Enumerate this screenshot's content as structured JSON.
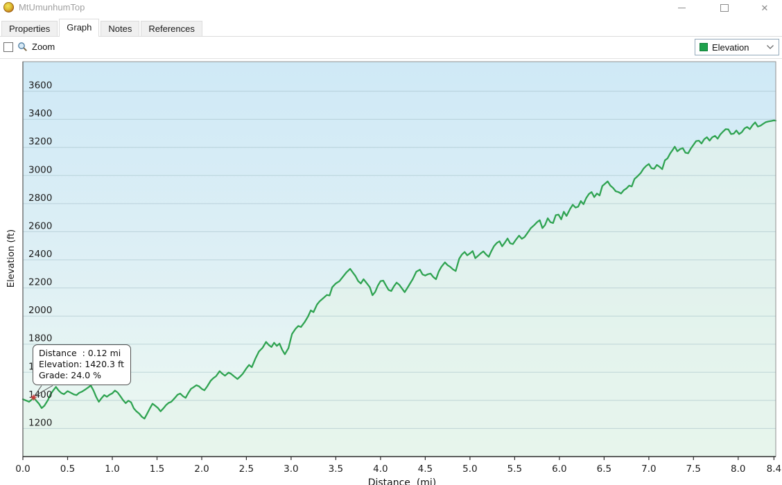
{
  "window": {
    "title": "MtUmunhumTop"
  },
  "tabs": [
    {
      "label": "Properties",
      "active": false
    },
    {
      "label": "Graph",
      "active": true
    },
    {
      "label": "Notes",
      "active": false
    },
    {
      "label": "References",
      "active": false
    }
  ],
  "toolbar": {
    "zoom_label": "Zoom",
    "zoom_checked": false,
    "series_selector": {
      "value": "Elevation",
      "swatch_color": "#1fa24c"
    }
  },
  "tooltip": {
    "lines": [
      "Distance  : 0.12 mi",
      "Elevation: 1420.3 ft",
      "Grade: 24.0 %"
    ]
  },
  "chart_data": {
    "type": "area",
    "title": "",
    "xlabel": "Distance  (mi)",
    "ylabel": "Elevation (ft)",
    "xlim": [
      0,
      8.42
    ],
    "ylim": [
      1000,
      3810
    ],
    "x_ticks": [
      0.0,
      0.5,
      1.0,
      1.5,
      2.0,
      2.5,
      3.0,
      3.5,
      4.0,
      4.5,
      5.0,
      5.5,
      6.0,
      6.5,
      7.0,
      7.5,
      8.0,
      8.4
    ],
    "y_ticks": [
      1200,
      1400,
      1600,
      1800,
      2000,
      2200,
      2400,
      2600,
      2800,
      3000,
      3200,
      3400,
      3600
    ],
    "grid": true,
    "legend_position": "toolbar-dropdown",
    "line_color": "#2fa351",
    "area_color": "#e3f3e9",
    "bg_gradient": [
      "#cfe9f6",
      "#ddeff5",
      "#eef9f1"
    ],
    "grid_color": "#9fb9c2",
    "marker": {
      "x": 0.12,
      "y": 1420.3,
      "color": "#cf3737"
    },
    "series": [
      {
        "name": "Elevation",
        "points": [
          [
            0.0,
            1408
          ],
          [
            0.04,
            1398
          ],
          [
            0.07,
            1390
          ],
          [
            0.1,
            1406
          ],
          [
            0.12,
            1420
          ],
          [
            0.15,
            1398
          ],
          [
            0.18,
            1376
          ],
          [
            0.21,
            1345
          ],
          [
            0.24,
            1362
          ],
          [
            0.28,
            1402
          ],
          [
            0.31,
            1444
          ],
          [
            0.34,
            1472
          ],
          [
            0.37,
            1496
          ],
          [
            0.4,
            1470
          ],
          [
            0.43,
            1452
          ],
          [
            0.46,
            1444
          ],
          [
            0.5,
            1466
          ],
          [
            0.53,
            1456
          ],
          [
            0.57,
            1442
          ],
          [
            0.6,
            1438
          ],
          [
            0.63,
            1454
          ],
          [
            0.66,
            1462
          ],
          [
            0.7,
            1478
          ],
          [
            0.73,
            1492
          ],
          [
            0.76,
            1506
          ],
          [
            0.79,
            1470
          ],
          [
            0.82,
            1424
          ],
          [
            0.85,
            1390
          ],
          [
            0.88,
            1416
          ],
          [
            0.91,
            1438
          ],
          [
            0.94,
            1426
          ],
          [
            0.97,
            1440
          ],
          [
            1.0,
            1450
          ],
          [
            1.03,
            1470
          ],
          [
            1.06,
            1456
          ],
          [
            1.09,
            1430
          ],
          [
            1.12,
            1402
          ],
          [
            1.15,
            1380
          ],
          [
            1.18,
            1398
          ],
          [
            1.21,
            1386
          ],
          [
            1.24,
            1344
          ],
          [
            1.27,
            1322
          ],
          [
            1.3,
            1306
          ],
          [
            1.33,
            1284
          ],
          [
            1.36,
            1270
          ],
          [
            1.39,
            1306
          ],
          [
            1.42,
            1342
          ],
          [
            1.45,
            1376
          ],
          [
            1.48,
            1362
          ],
          [
            1.51,
            1346
          ],
          [
            1.54,
            1322
          ],
          [
            1.57,
            1342
          ],
          [
            1.6,
            1366
          ],
          [
            1.63,
            1382
          ],
          [
            1.66,
            1390
          ],
          [
            1.7,
            1418
          ],
          [
            1.73,
            1440
          ],
          [
            1.76,
            1448
          ],
          [
            1.79,
            1430
          ],
          [
            1.82,
            1418
          ],
          [
            1.85,
            1452
          ],
          [
            1.88,
            1482
          ],
          [
            1.91,
            1494
          ],
          [
            1.94,
            1508
          ],
          [
            1.97,
            1500
          ],
          [
            2.0,
            1482
          ],
          [
            2.03,
            1472
          ],
          [
            2.06,
            1498
          ],
          [
            2.1,
            1540
          ],
          [
            2.13,
            1558
          ],
          [
            2.16,
            1572
          ],
          [
            2.2,
            1608
          ],
          [
            2.23,
            1590
          ],
          [
            2.26,
            1576
          ],
          [
            2.3,
            1598
          ],
          [
            2.33,
            1588
          ],
          [
            2.36,
            1572
          ],
          [
            2.4,
            1552
          ],
          [
            2.43,
            1570
          ],
          [
            2.46,
            1590
          ],
          [
            2.5,
            1628
          ],
          [
            2.53,
            1652
          ],
          [
            2.56,
            1636
          ],
          [
            2.6,
            1696
          ],
          [
            2.64,
            1748
          ],
          [
            2.68,
            1774
          ],
          [
            2.72,
            1816
          ],
          [
            2.75,
            1794
          ],
          [
            2.78,
            1780
          ],
          [
            2.81,
            1810
          ],
          [
            2.84,
            1788
          ],
          [
            2.87,
            1804
          ],
          [
            2.9,
            1760
          ],
          [
            2.93,
            1728
          ],
          [
            2.97,
            1772
          ],
          [
            3.01,
            1872
          ],
          [
            3.05,
            1910
          ],
          [
            3.08,
            1930
          ],
          [
            3.11,
            1922
          ],
          [
            3.15,
            1956
          ],
          [
            3.19,
            1998
          ],
          [
            3.22,
            2040
          ],
          [
            3.25,
            2028
          ],
          [
            3.29,
            2082
          ],
          [
            3.32,
            2106
          ],
          [
            3.36,
            2128
          ],
          [
            3.4,
            2150
          ],
          [
            3.43,
            2146
          ],
          [
            3.46,
            2206
          ],
          [
            3.5,
            2232
          ],
          [
            3.54,
            2248
          ],
          [
            3.58,
            2280
          ],
          [
            3.62,
            2312
          ],
          [
            3.66,
            2336
          ],
          [
            3.69,
            2310
          ],
          [
            3.72,
            2284
          ],
          [
            3.75,
            2248
          ],
          [
            3.78,
            2232
          ],
          [
            3.81,
            2262
          ],
          [
            3.84,
            2238
          ],
          [
            3.88,
            2206
          ],
          [
            3.91,
            2148
          ],
          [
            3.94,
            2172
          ],
          [
            3.97,
            2216
          ],
          [
            4.0,
            2248
          ],
          [
            4.03,
            2252
          ],
          [
            4.06,
            2218
          ],
          [
            4.09,
            2186
          ],
          [
            4.12,
            2178
          ],
          [
            4.15,
            2212
          ],
          [
            4.18,
            2238
          ],
          [
            4.21,
            2222
          ],
          [
            4.24,
            2196
          ],
          [
            4.27,
            2170
          ],
          [
            4.3,
            2200
          ],
          [
            4.33,
            2232
          ],
          [
            4.36,
            2262
          ],
          [
            4.4,
            2316
          ],
          [
            4.44,
            2330
          ],
          [
            4.47,
            2296
          ],
          [
            4.5,
            2288
          ],
          [
            4.53,
            2298
          ],
          [
            4.56,
            2302
          ],
          [
            4.59,
            2278
          ],
          [
            4.62,
            2262
          ],
          [
            4.65,
            2316
          ],
          [
            4.68,
            2350
          ],
          [
            4.72,
            2382
          ],
          [
            4.75,
            2362
          ],
          [
            4.78,
            2350
          ],
          [
            4.81,
            2332
          ],
          [
            4.84,
            2320
          ],
          [
            4.88,
            2408
          ],
          [
            4.91,
            2438
          ],
          [
            4.94,
            2456
          ],
          [
            4.97,
            2432
          ],
          [
            5.0,
            2446
          ],
          [
            5.03,
            2462
          ],
          [
            5.06,
            2412
          ],
          [
            5.09,
            2428
          ],
          [
            5.12,
            2446
          ],
          [
            5.15,
            2460
          ],
          [
            5.18,
            2438
          ],
          [
            5.21,
            2422
          ],
          [
            5.24,
            2462
          ],
          [
            5.27,
            2498
          ],
          [
            5.3,
            2520
          ],
          [
            5.33,
            2532
          ],
          [
            5.36,
            2496
          ],
          [
            5.39,
            2522
          ],
          [
            5.42,
            2552
          ],
          [
            5.45,
            2518
          ],
          [
            5.48,
            2512
          ],
          [
            5.51,
            2540
          ],
          [
            5.55,
            2572
          ],
          [
            5.58,
            2550
          ],
          [
            5.61,
            2562
          ],
          [
            5.64,
            2588
          ],
          [
            5.68,
            2625
          ],
          [
            5.72,
            2648
          ],
          [
            5.75,
            2668
          ],
          [
            5.78,
            2682
          ],
          [
            5.81,
            2626
          ],
          [
            5.84,
            2648
          ],
          [
            5.87,
            2696
          ],
          [
            5.9,
            2668
          ],
          [
            5.93,
            2662
          ],
          [
            5.96,
            2718
          ],
          [
            5.99,
            2722
          ],
          [
            6.02,
            2688
          ],
          [
            6.05,
            2742
          ],
          [
            6.08,
            2712
          ],
          [
            6.12,
            2762
          ],
          [
            6.15,
            2792
          ],
          [
            6.18,
            2772
          ],
          [
            6.21,
            2778
          ],
          [
            6.24,
            2818
          ],
          [
            6.27,
            2796
          ],
          [
            6.3,
            2840
          ],
          [
            6.33,
            2868
          ],
          [
            6.36,
            2882
          ],
          [
            6.39,
            2846
          ],
          [
            6.42,
            2872
          ],
          [
            6.45,
            2858
          ],
          [
            6.48,
            2925
          ],
          [
            6.51,
            2942
          ],
          [
            6.54,
            2958
          ],
          [
            6.57,
            2928
          ],
          [
            6.6,
            2912
          ],
          [
            6.63,
            2888
          ],
          [
            6.66,
            2882
          ],
          [
            6.69,
            2872
          ],
          [
            6.72,
            2895
          ],
          [
            6.75,
            2908
          ],
          [
            6.78,
            2928
          ],
          [
            6.81,
            2922
          ],
          [
            6.84,
            2975
          ],
          [
            6.87,
            2992
          ],
          [
            6.91,
            3018
          ],
          [
            6.94,
            3048
          ],
          [
            6.97,
            3068
          ],
          [
            7.0,
            3082
          ],
          [
            7.03,
            3052
          ],
          [
            7.06,
            3048
          ],
          [
            7.09,
            3075
          ],
          [
            7.12,
            3062
          ],
          [
            7.15,
            3045
          ],
          [
            7.18,
            3108
          ],
          [
            7.21,
            3122
          ],
          [
            7.24,
            3158
          ],
          [
            7.27,
            3185
          ],
          [
            7.29,
            3205
          ],
          [
            7.32,
            3172
          ],
          [
            7.35,
            3188
          ],
          [
            7.38,
            3195
          ],
          [
            7.41,
            3162
          ],
          [
            7.44,
            3158
          ],
          [
            7.47,
            3192
          ],
          [
            7.5,
            3218
          ],
          [
            7.53,
            3245
          ],
          [
            7.56,
            3248
          ],
          [
            7.59,
            3228
          ],
          [
            7.62,
            3258
          ],
          [
            7.65,
            3272
          ],
          [
            7.68,
            3248
          ],
          [
            7.71,
            3272
          ],
          [
            7.74,
            3282
          ],
          [
            7.77,
            3262
          ],
          [
            7.8,
            3292
          ],
          [
            7.83,
            3312
          ],
          [
            7.86,
            3330
          ],
          [
            7.89,
            3328
          ],
          [
            7.92,
            3295
          ],
          [
            7.95,
            3298
          ],
          [
            7.98,
            3320
          ],
          [
            8.01,
            3295
          ],
          [
            8.04,
            3308
          ],
          [
            8.07,
            3335
          ],
          [
            8.1,
            3345
          ],
          [
            8.13,
            3330
          ],
          [
            8.16,
            3358
          ],
          [
            8.19,
            3378
          ],
          [
            8.22,
            3348
          ],
          [
            8.25,
            3355
          ],
          [
            8.28,
            3368
          ],
          [
            8.31,
            3380
          ],
          [
            8.34,
            3385
          ],
          [
            8.37,
            3388
          ],
          [
            8.4,
            3392
          ],
          [
            8.42,
            3390
          ]
        ]
      }
    ]
  }
}
